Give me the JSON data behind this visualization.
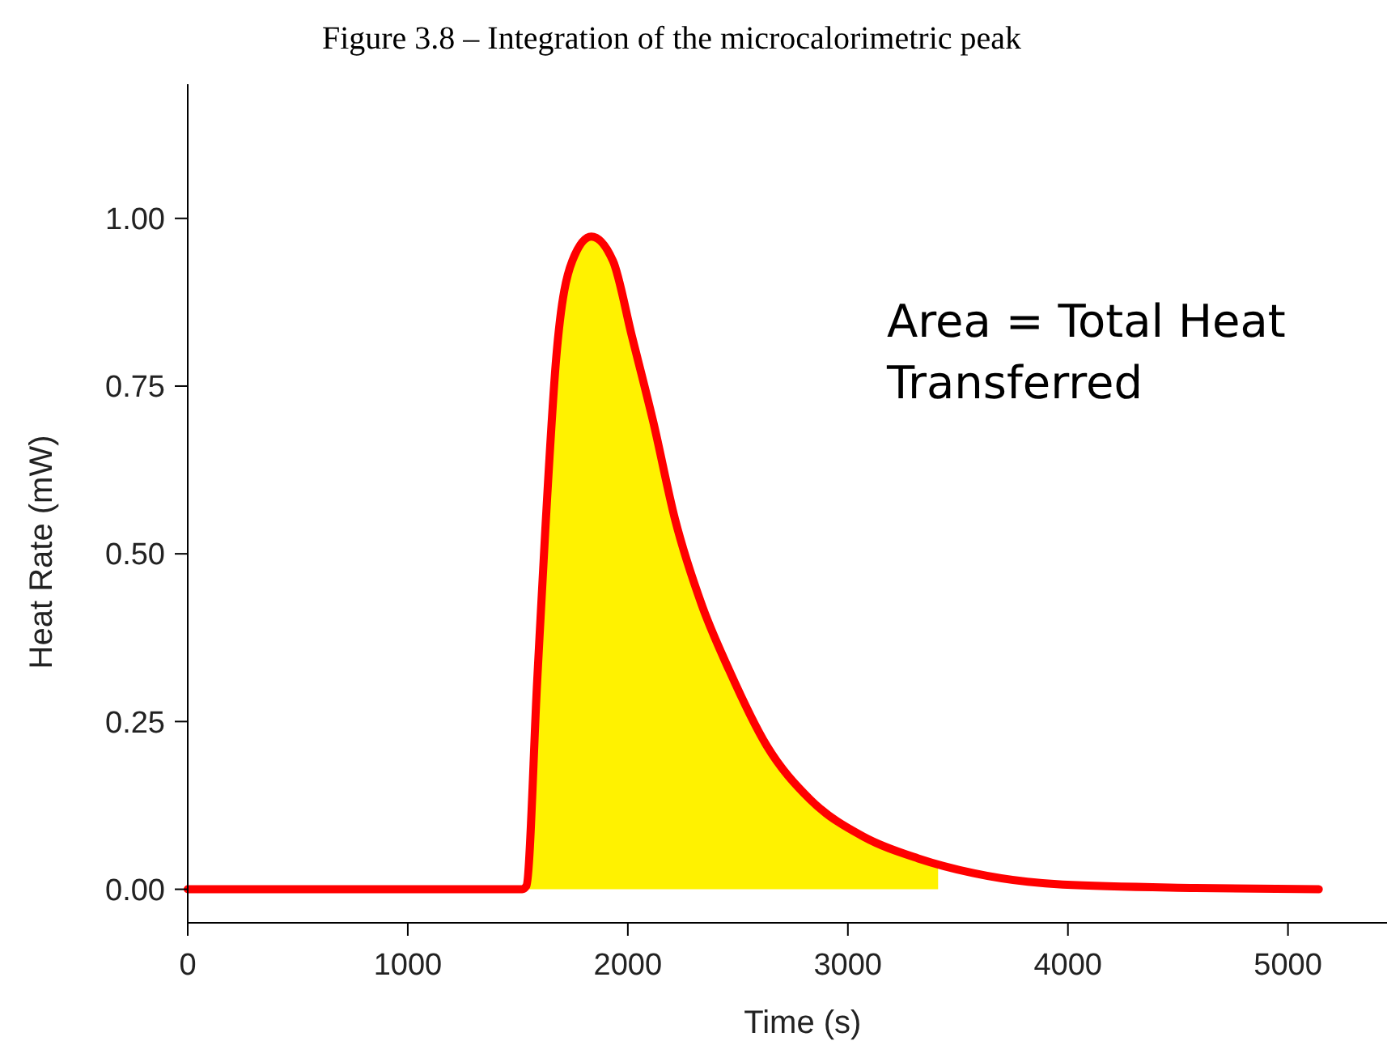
{
  "chart_data": {
    "type": "line",
    "title": "Figure 3.8 – Integration of the microcalorimetric peak",
    "xlabel": "Time (s)",
    "ylabel": "Heat Rate (mW)",
    "annotations": [
      "Area = Total Heat Transferred"
    ],
    "xlim": [
      0,
      5450
    ],
    "xticks": [
      0,
      1000,
      2000,
      3000,
      4000,
      5000
    ],
    "ylim": [
      -0.05,
      1.2
    ],
    "yticks": [
      {
        "value": 0,
        "label": "0.00"
      },
      {
        "value": 0.25,
        "label": "0.25"
      },
      {
        "value": 0.5,
        "label": "0.50"
      },
      {
        "value": 0.75,
        "label": "0.75"
      },
      {
        "value": 1,
        "label": "1.00"
      }
    ],
    "grid": false,
    "marker": "none",
    "line_style": "solid",
    "series": [
      {
        "type": "area",
        "color": "#fff200",
        "x": [
          1539,
          1588,
          1625,
          1674,
          1748,
          1834,
          1932,
          2018,
          2116,
          2214,
          2337,
          2460,
          2631,
          2828,
          3073,
          3319,
          3410
        ],
        "values": [
          0.005,
          0.31,
          0.536,
          0.79,
          0.937,
          0.973,
          0.937,
          0.825,
          0.696,
          0.552,
          0.423,
          0.327,
          0.214,
          0.134,
          0.078,
          0.046,
          0.038
        ]
      },
      {
        "color": "#ff0000",
        "x": [
          0,
          1000,
          1520,
          1539,
          1588,
          1625,
          1674,
          1748,
          1834,
          1932,
          2018,
          2116,
          2214,
          2337,
          2460,
          2631,
          2828,
          3073,
          3319,
          3571,
          3976,
          4580,
          5140
        ],
        "values": [
          0,
          0,
          0,
          0.005,
          0.31,
          0.536,
          0.79,
          0.937,
          0.973,
          0.937,
          0.825,
          0.696,
          0.552,
          0.423,
          0.327,
          0.214,
          0.134,
          0.078,
          0.046,
          0.024,
          0.007,
          0.002,
          0
        ]
      }
    ]
  }
}
